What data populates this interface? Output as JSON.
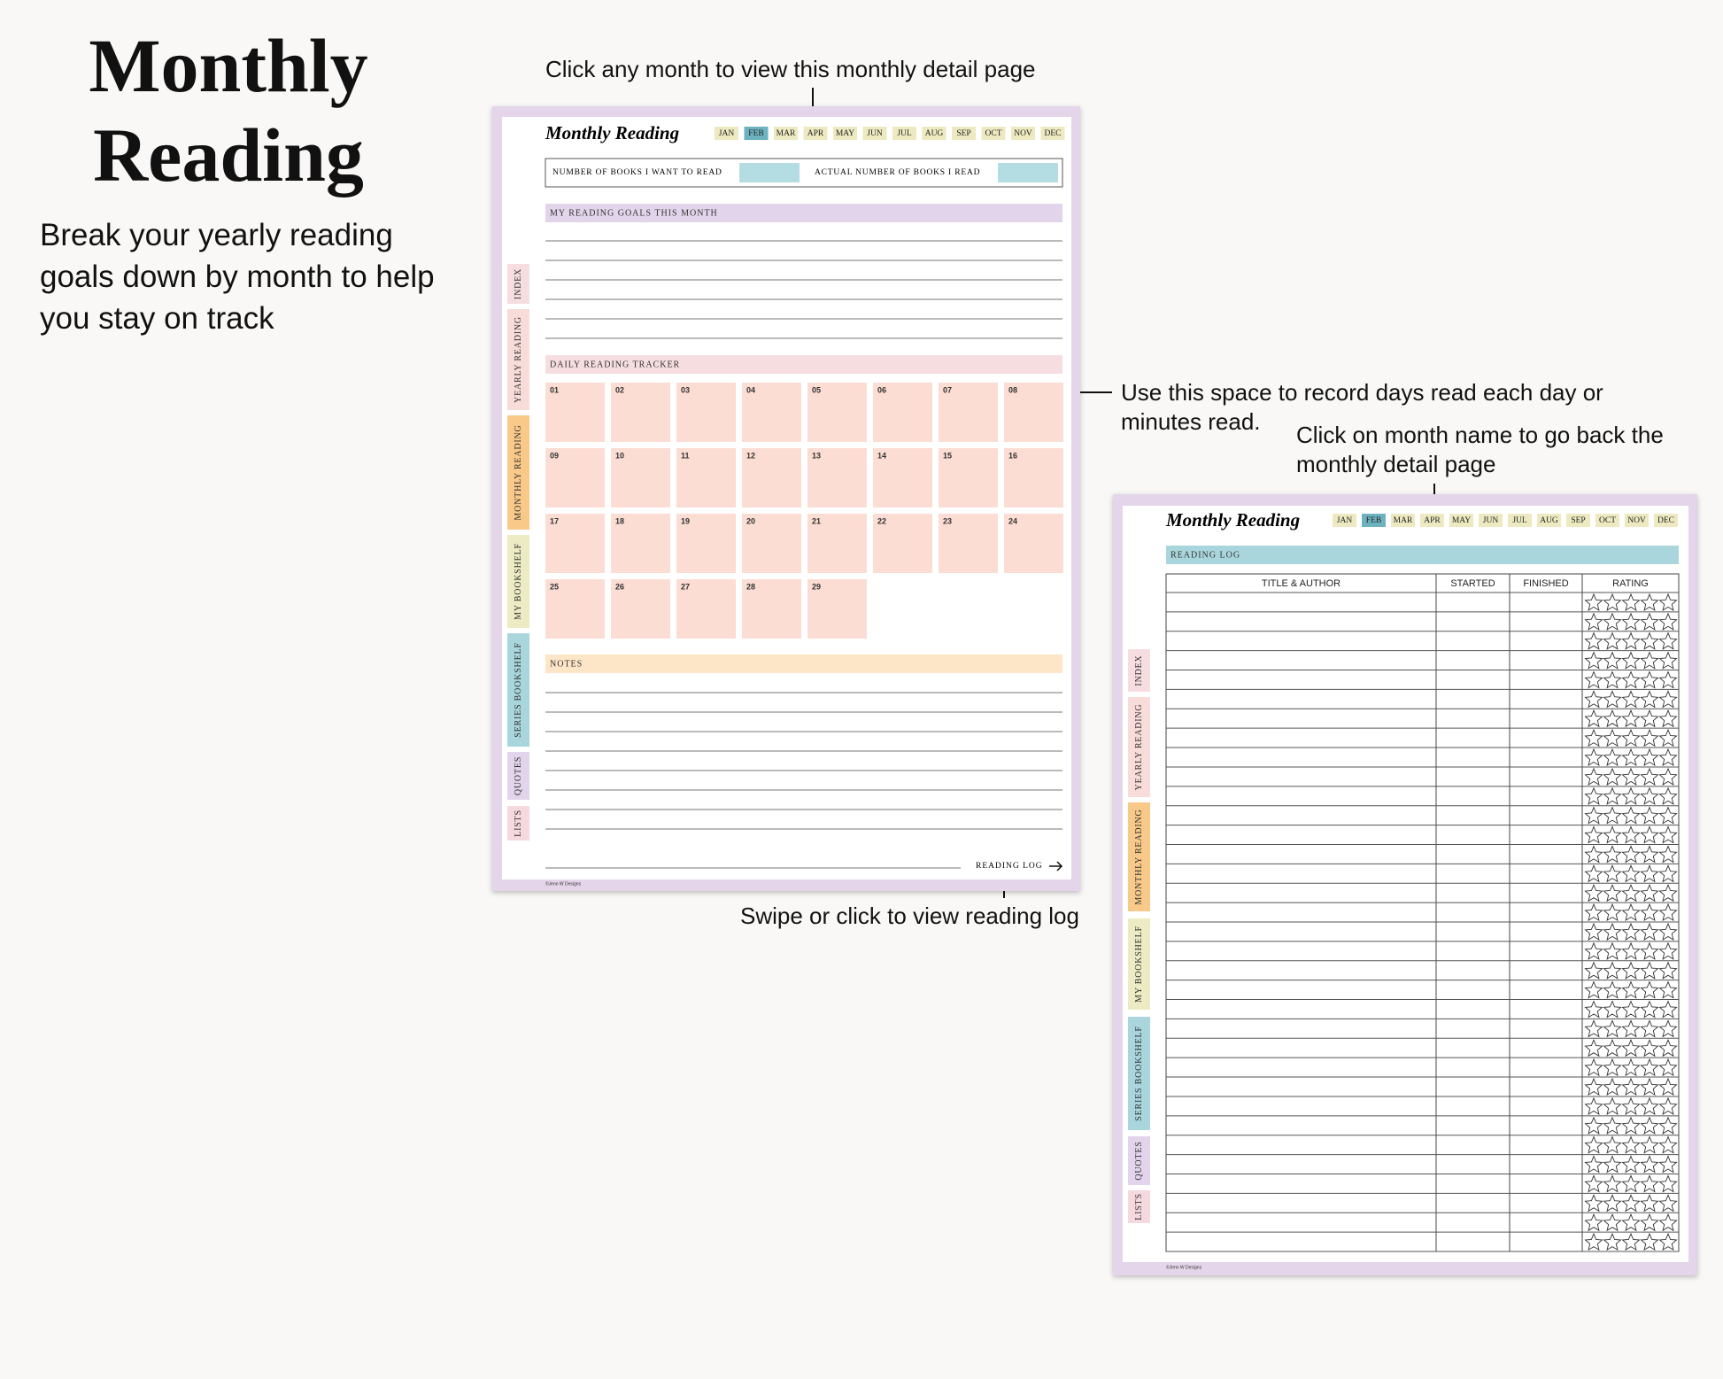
{
  "heading": {
    "title": "Monthly Reading",
    "description": "Break your yearly reading goals down by month to help you stay on track"
  },
  "callouts": [
    "Click any month to view this monthly detail page",
    "Use this space to record days read each day or minutes read.",
    "Click on month name to go back the monthly detail page",
    "Swipe or click to view reading log"
  ],
  "tabs": [
    "INDEX",
    "YEARLY READING",
    "MONTHLY READING",
    "MY BOOKSHELF",
    "SERIES BOOKSHELF",
    "QUOTES",
    "LISTS"
  ],
  "months": [
    "JAN",
    "FEB",
    "MAR",
    "APR",
    "MAY",
    "JUN",
    "JUL",
    "AUG",
    "SEP",
    "OCT",
    "NOV",
    "DEC"
  ],
  "monthly_page": {
    "title": "Monthly Reading",
    "goal_fields": [
      "NUMBER OF BOOKS I WANT TO READ",
      "ACTUAL NUMBER OF BOOKS I READ"
    ],
    "sections": {
      "goals": "MY READING GOALS THIS MONTH",
      "tracker": "DAILY READING TRACKER",
      "notes": "NOTES"
    },
    "days": [
      "01",
      "02",
      "03",
      "04",
      "05",
      "06",
      "07",
      "08",
      "09",
      "10",
      "11",
      "12",
      "13",
      "14",
      "15",
      "16",
      "17",
      "18",
      "19",
      "20",
      "21",
      "22",
      "23",
      "24",
      "25",
      "26",
      "27",
      "28",
      "29"
    ],
    "link": "READING LOG",
    "credit": "©Jenn W Designs"
  },
  "log_page": {
    "title": "Monthly Reading",
    "section": "READING LOG",
    "columns": [
      "TITLE & AUTHOR",
      "STARTED",
      "FINISHED",
      "RATING"
    ],
    "credit": "©Jenn W Designs"
  }
}
